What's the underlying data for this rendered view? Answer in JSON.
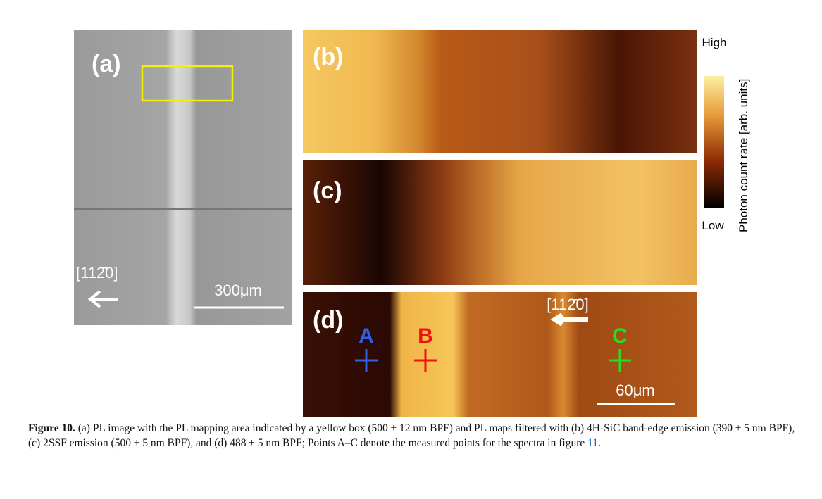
{
  "panels": {
    "a": {
      "label": "(a)",
      "direction": "[112̄0]",
      "scale": "300μm"
    },
    "b": {
      "label": "(b)"
    },
    "c": {
      "label": "(c)"
    },
    "d": {
      "label": "(d)",
      "direction": "[112̄0]",
      "scale": "60μm",
      "points": [
        "A",
        "B",
        "C"
      ]
    }
  },
  "colorbar": {
    "high": "High",
    "low": "Low",
    "title": "Photon count rate [arb. units]"
  },
  "caption": {
    "label": "Figure 10.",
    "text": " (a) PL image with the PL mapping area indicated by a yellow box (500 ± 12 nm BPF) and PL maps filtered with (b) 4H-SiC band-edge emission (390 ± 5 nm BPF), (c) 2SSF emission (500 ± 5 nm BPF), and (d) 488 ± 5 nm BPF; Points A–C denote the measured points for the spectra in figure ",
    "ref": "11",
    "end": "."
  }
}
